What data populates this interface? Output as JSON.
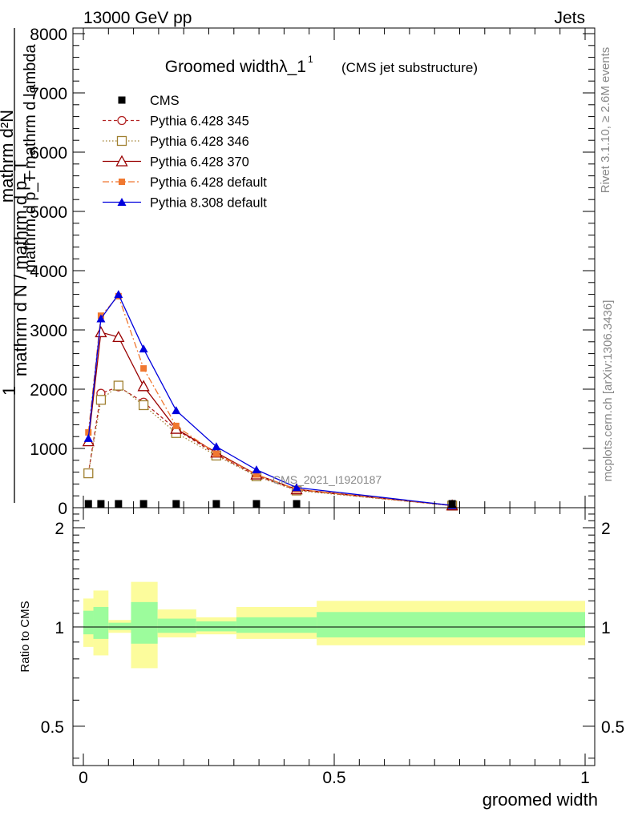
{
  "header": {
    "left": "13000 GeV pp",
    "right": "Jets"
  },
  "side_text": {
    "rivet": "Rivet 3.1.10, ≥ 2.6M events",
    "mcplots": "mcplots.cern.ch [arXiv:1306.3436]"
  },
  "watermark": "CMS_2021_I1920187",
  "chart_data": [
    {
      "type": "line",
      "title": "Groomed widthλ_1",
      "title_sup": "1",
      "subtitle": "(CMS jet substructure)",
      "ylabel_numer": "mathrm d²N",
      "ylabel_numer_sub": "mathrm d p_T mathrm d lambda",
      "ylabel_prefix": "1",
      "ylabel_denom": "mathrm d N / mathrm d p_T",
      "xlim": [
        0,
        1
      ],
      "ylim": [
        0,
        8000
      ],
      "yticks": [
        0,
        1000,
        2000,
        3000,
        4000,
        5000,
        6000,
        7000,
        8000
      ],
      "ytick_labels": [
        "0",
        "1000",
        "2000",
        "3000",
        "4000",
        "5000",
        "6000",
        "7000",
        "8000"
      ],
      "x": [
        0.01,
        0.035,
        0.07,
        0.12,
        0.185,
        0.265,
        0.345,
        0.425,
        0.735
      ],
      "reference": {
        "name": "CMS",
        "values": [
          10,
          10,
          10,
          10,
          10,
          10,
          10,
          10,
          10
        ],
        "color": "#000000"
      },
      "series": [
        {
          "name": "Pythia 6.428 345",
          "color": "#b22222",
          "dash": "4,3",
          "marker": "circle-open",
          "values": [
            580,
            1930,
            2040,
            1780,
            1320,
            900,
            540,
            300,
            35
          ]
        },
        {
          "name": "Pythia 6.428 346",
          "color": "#a08030",
          "dash": "1.5,2.5",
          "marker": "square-open",
          "values": [
            580,
            1820,
            2060,
            1730,
            1260,
            880,
            530,
            290,
            35
          ]
        },
        {
          "name": "Pythia 6.428 370",
          "color": "#990000",
          "dash": "",
          "marker": "triangle-open",
          "values": [
            1120,
            2960,
            2880,
            2050,
            1330,
            930,
            560,
            310,
            38
          ]
        },
        {
          "name": "Pythia 6.428 default",
          "color": "#f07830",
          "dash": "8,3,2,3",
          "marker": "square-filled",
          "values": [
            1270,
            3240,
            3570,
            2350,
            1380,
            910,
            560,
            310,
            38
          ]
        },
        {
          "name": "Pythia 8.308 default",
          "color": "#0000dd",
          "dash": "",
          "marker": "triangle-filled",
          "values": [
            1170,
            3190,
            3600,
            2680,
            1640,
            1030,
            640,
            340,
            38
          ]
        }
      ]
    },
    {
      "type": "ratio",
      "ylabel": "Ratio to CMS",
      "xlabel": "groomed width",
      "xlim": [
        0,
        1
      ],
      "ylim": [
        0.38,
        2.3
      ],
      "yticks": [
        0.5,
        1,
        2
      ],
      "ytick_labels": [
        "0.5",
        "1",
        "2"
      ],
      "xticks": [
        0,
        0.5,
        1
      ],
      "xtick_labels": [
        "0",
        "0.5",
        "1"
      ],
      "bins": [
        {
          "x0": 0.0,
          "x1": 0.02,
          "inner": [
            0.95,
            1.12
          ],
          "outer": [
            0.87,
            1.22
          ]
        },
        {
          "x0": 0.02,
          "x1": 0.05,
          "inner": [
            0.92,
            1.15
          ],
          "outer": [
            0.82,
            1.29
          ]
        },
        {
          "x0": 0.05,
          "x1": 0.095,
          "inner": [
            0.98,
            1.03
          ],
          "outer": [
            0.96,
            1.05
          ]
        },
        {
          "x0": 0.095,
          "x1": 0.148,
          "inner": [
            0.89,
            1.19
          ],
          "outer": [
            0.75,
            1.37
          ]
        },
        {
          "x0": 0.148,
          "x1": 0.225,
          "inner": [
            0.96,
            1.06
          ],
          "outer": [
            0.93,
            1.13
          ]
        },
        {
          "x0": 0.225,
          "x1": 0.305,
          "inner": [
            0.97,
            1.04
          ],
          "outer": [
            0.95,
            1.07
          ]
        },
        {
          "x0": 0.305,
          "x1": 0.385,
          "inner": [
            0.96,
            1.07
          ],
          "outer": [
            0.92,
            1.15
          ]
        },
        {
          "x0": 0.385,
          "x1": 0.465,
          "inner": [
            0.96,
            1.07
          ],
          "outer": [
            0.92,
            1.15
          ]
        },
        {
          "x0": 0.465,
          "x1": 1.0,
          "inner": [
            0.93,
            1.11
          ],
          "outer": [
            0.88,
            1.2
          ]
        }
      ],
      "inner_color": "#9cfc9c",
      "outer_color": "#fcfc9c"
    }
  ]
}
